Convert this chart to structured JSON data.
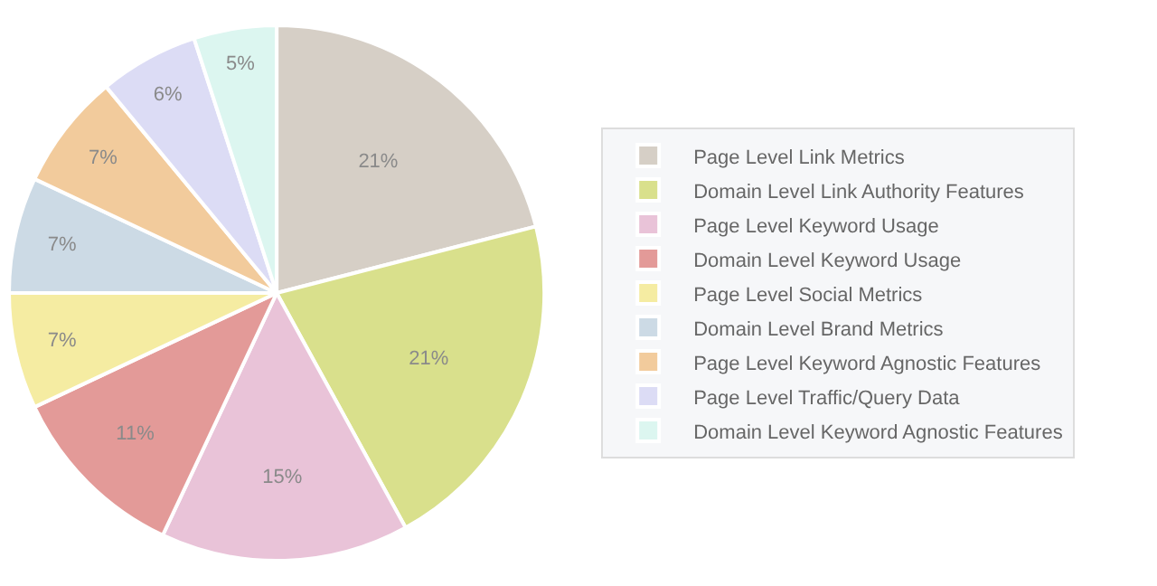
{
  "chart_data": {
    "type": "pie",
    "categories": [
      "Page Level Link Metrics",
      "Domain Level Link Authority Features",
      "Page Level Keyword Usage",
      "Domain Level Keyword Usage",
      "Page Level Social Metrics",
      "Domain Level Brand Metrics",
      "Page Level Keyword Agnostic Features",
      "Page Level Traffic/Query Data",
      "Domain Level Keyword Agnostic Features"
    ],
    "values": [
      21,
      21,
      15,
      11,
      7,
      7,
      7,
      6,
      5
    ],
    "value_labels": [
      "21%",
      "21%",
      "15%",
      "11%",
      "7%",
      "7%",
      "7%",
      "6%",
      "5%"
    ],
    "colors": [
      "#d6cfc6",
      "#d9e08c",
      "#e9c3d8",
      "#e39a98",
      "#f5eca2",
      "#ccdae5",
      "#f2cb9c",
      "#dcdcf5",
      "#dcf6f0"
    ],
    "legend": "right"
  }
}
